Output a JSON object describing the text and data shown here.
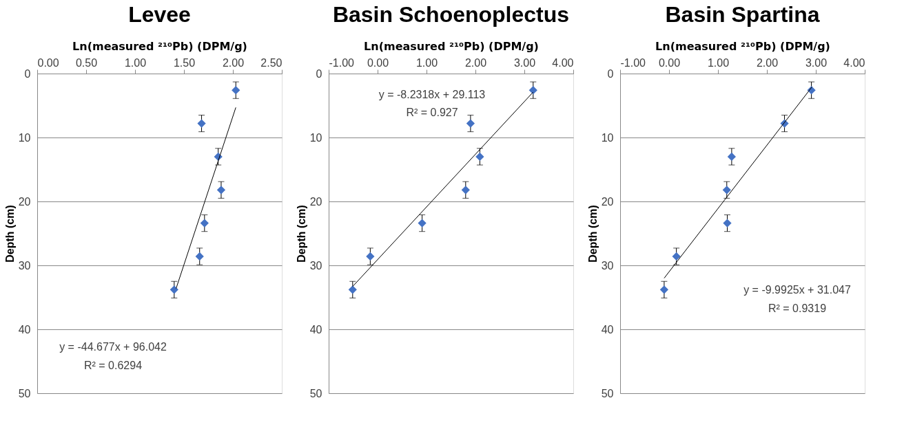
{
  "chart_data": [
    {
      "type": "scatter",
      "title": "Levee",
      "xlabel": "Ln(measured ²¹⁰Pb) (DPM/g)",
      "ylabel": "Depth (cm)",
      "xlim": [
        0,
        2.5
      ],
      "xticks": [
        {
          "value": 0,
          "label": "0.00"
        },
        {
          "value": 0.5,
          "label": "0.50"
        },
        {
          "value": 1,
          "label": "1.00"
        },
        {
          "value": 1.5,
          "label": "1.50"
        },
        {
          "value": 2,
          "label": "2.00"
        },
        {
          "value": 2.5,
          "label": "2.50"
        }
      ],
      "ylim": [
        50,
        0
      ],
      "yticks": [
        0,
        10,
        20,
        30,
        40,
        50
      ],
      "grid": "y",
      "series": [
        {
          "type": "scatter",
          "color": "#4472c4",
          "marker": "diamond",
          "x": [
            2.03,
            1.68,
            1.85,
            1.88,
            1.71,
            1.66,
            1.4
          ],
          "values": [
            2.6,
            7.8,
            13.0,
            18.2,
            23.4,
            28.6,
            33.8
          ],
          "errors": [
            1.3,
            1.3,
            1.3,
            1.3,
            1.3,
            1.3,
            1.3
          ]
        },
        {
          "type": "line",
          "color": "#000000",
          "x": [
            1.42,
            2.03
          ],
          "values": [
            33.6,
            5.3
          ]
        }
      ],
      "annotations": [
        "y = -44.677x + 96.042",
        "R² = 0.6294"
      ]
    },
    {
      "type": "scatter",
      "title": "Basin Schoenoplectus",
      "xlabel": "Ln(measured ²¹⁰Pb) (DPM/g)",
      "ylabel": "Depth (cm)",
      "xlim": [
        -1,
        4
      ],
      "xticks": [
        {
          "value": -1,
          "label": "-1.00"
        },
        {
          "value": 0,
          "label": "0.00"
        },
        {
          "value": 1,
          "label": "1.00"
        },
        {
          "value": 2,
          "label": "2.00"
        },
        {
          "value": 3,
          "label": "3.00"
        },
        {
          "value": 4,
          "label": "4.00"
        }
      ],
      "ylim": [
        50,
        0
      ],
      "yticks": [
        0,
        10,
        20,
        30,
        40,
        50
      ],
      "grid": "y",
      "series": [
        {
          "type": "scatter",
          "color": "#4472c4",
          "marker": "diamond",
          "x": [
            3.18,
            1.9,
            2.09,
            1.8,
            0.91,
            -0.15,
            -0.51
          ],
          "values": [
            2.6,
            7.8,
            13.0,
            18.2,
            23.4,
            28.6,
            33.8
          ],
          "errors": [
            1.3,
            1.3,
            1.3,
            1.3,
            1.3,
            1.3,
            1.3
          ]
        },
        {
          "type": "line",
          "color": "#000000",
          "x": [
            -0.51,
            3.18
          ],
          "values": [
            33.3,
            2.9
          ]
        }
      ],
      "annotations": [
        "y = -8.2318x + 29.113",
        "R² = 0.927"
      ]
    },
    {
      "type": "scatter",
      "title": "Basin Spartina",
      "xlabel": "Ln(measured ²¹⁰Pb) (DPM/g)",
      "ylabel": "Depth (cm)",
      "xlim": [
        -1,
        4
      ],
      "xticks": [
        {
          "value": -1,
          "label": "-1.00"
        },
        {
          "value": 0,
          "label": "0.00"
        },
        {
          "value": 1,
          "label": "1.00"
        },
        {
          "value": 2,
          "label": "2.00"
        },
        {
          "value": 3,
          "label": "3.00"
        },
        {
          "value": 4,
          "label": "4.00"
        }
      ],
      "ylim": [
        50,
        0
      ],
      "yticks": [
        0,
        10,
        20,
        30,
        40,
        50
      ],
      "grid": "y",
      "series": [
        {
          "type": "scatter",
          "color": "#4472c4",
          "marker": "diamond",
          "x": [
            2.91,
            2.36,
            1.28,
            1.18,
            1.19,
            0.15,
            -0.1
          ],
          "values": [
            2.6,
            7.8,
            13.0,
            18.2,
            23.4,
            28.6,
            33.8
          ],
          "errors": [
            1.3,
            1.3,
            1.3,
            1.3,
            1.3,
            1.3,
            1.3
          ]
        },
        {
          "type": "line",
          "color": "#000000",
          "x": [
            -0.1,
            2.92
          ],
          "values": [
            32.0,
            2.1
          ]
        }
      ],
      "annotations": [
        "y = -9.9925x + 31.047",
        "R² = 0.9319"
      ]
    }
  ]
}
